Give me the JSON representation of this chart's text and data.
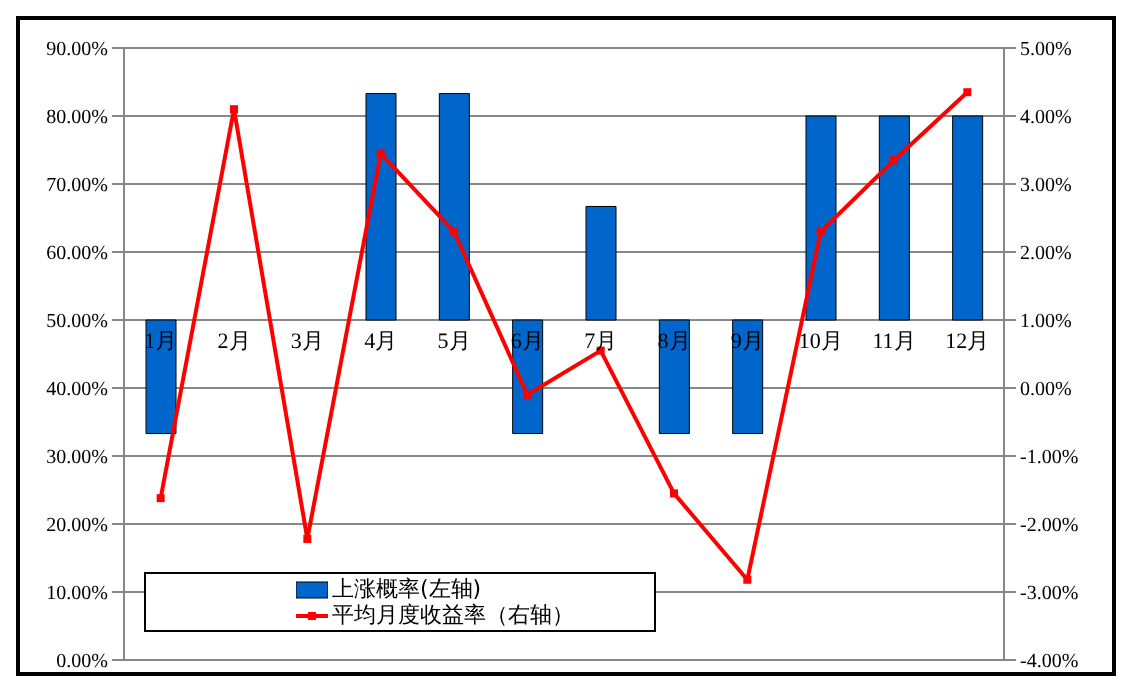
{
  "chart_data": {
    "type": "bar",
    "categories": [
      "1月",
      "2月",
      "3月",
      "4月",
      "5月",
      "6月",
      "7月",
      "8月",
      "9月",
      "10月",
      "11月",
      "12月"
    ],
    "series": [
      {
        "name": "上涨概率(左轴)",
        "color": "#0066cc",
        "base": [
          50,
          null,
          null,
          50,
          50,
          50,
          50,
          50,
          50,
          50,
          50,
          50
        ],
        "values": [
          -16.7,
          null,
          null,
          33.3,
          33.3,
          -16.7,
          16.7,
          -16.7,
          -16.7,
          30,
          30,
          30
        ]
      },
      {
        "name": "平均月度收益率（右轴）",
        "type": "line",
        "axis": "y2",
        "color": "#ff0000",
        "marker": "square",
        "values": [
          -1.62,
          4.1,
          -2.22,
          3.45,
          2.3,
          -0.1,
          0.55,
          -1.55,
          -2.82,
          2.3,
          3.35,
          4.35
        ]
      }
    ],
    "ylim": [
      0,
      90
    ],
    "yticks": [
      {
        "value": 0,
        "label": "0.00%"
      },
      {
        "value": 10,
        "label": "10.00%"
      },
      {
        "value": 20,
        "label": "20.00%"
      },
      {
        "value": 30,
        "label": "30.00%"
      },
      {
        "value": 40,
        "label": "40.00%"
      },
      {
        "value": 50,
        "label": "50.00%"
      },
      {
        "value": 60,
        "label": "60.00%"
      },
      {
        "value": 70,
        "label": "70.00%"
      },
      {
        "value": 80,
        "label": "80.00%"
      },
      {
        "value": 90,
        "label": "90.00%"
      }
    ],
    "y2lim": [
      -4,
      5
    ],
    "y2ticks": [
      {
        "value": -4,
        "label": "-4.00%"
      },
      {
        "value": -3,
        "label": "-3.00%"
      },
      {
        "value": -2,
        "label": "-2.00%"
      },
      {
        "value": -1,
        "label": "-1.00%"
      },
      {
        "value": 0,
        "label": "0.00%"
      },
      {
        "value": 1,
        "label": "1.00%"
      },
      {
        "value": 2,
        "label": "2.00%"
      },
      {
        "value": 3,
        "label": "3.00%"
      },
      {
        "value": 4,
        "label": "4.00%"
      },
      {
        "value": 5,
        "label": "5.00%"
      }
    ],
    "grid": "y",
    "legend": "bottom left"
  }
}
